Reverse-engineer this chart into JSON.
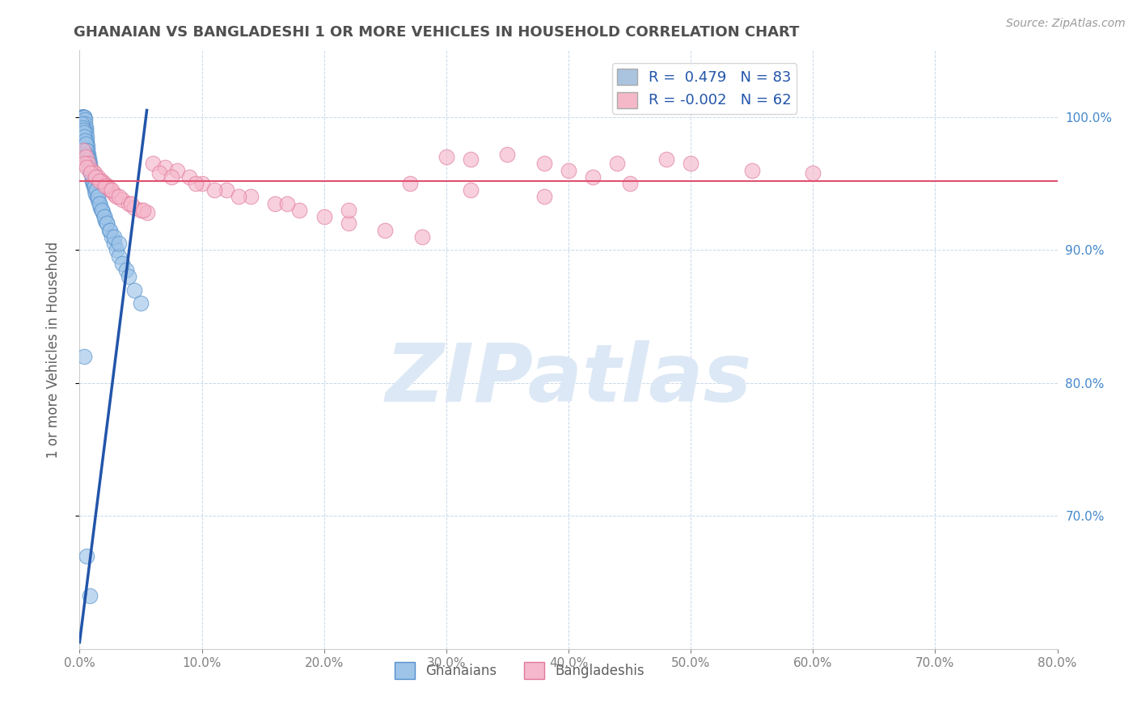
{
  "title": "GHANAIAN VS BANGLADESHI 1 OR MORE VEHICLES IN HOUSEHOLD CORRELATION CHART",
  "source": "Source: ZipAtlas.com",
  "ylabel": "1 or more Vehicles in Household",
  "xlabel_ghanaian": "Ghanaians",
  "xlabel_bangladeshi": "Bangladeshis",
  "legend_line1": "R =  0.479   N = 83",
  "legend_line2": "R = -0.002   N = 62",
  "legend_color1": "#aac4e0",
  "legend_color2": "#f4b8c8",
  "blue_fill": "#9ec4e8",
  "pink_fill": "#f5b8cc",
  "blue_edge": "#5590cc",
  "pink_edge": "#e07898",
  "blue_line_color": "#2255aa",
  "pink_line_color": "#e05070",
  "watermark_text": "ZIPatlas",
  "watermark_color": "#dce8f5",
  "xlim": [
    0.0,
    80.0
  ],
  "ylim": [
    60.0,
    105.0
  ],
  "xticks": [
    0.0,
    10.0,
    20.0,
    30.0,
    40.0,
    50.0,
    60.0,
    70.0,
    80.0
  ],
  "yticks": [
    70.0,
    80.0,
    90.0,
    100.0
  ],
  "right_ytick_labels": [
    "70.0%",
    "80.0%",
    "90.0%",
    "100.0%"
  ],
  "xtick_labels": [
    "0.0%",
    "10.0%",
    "20.0%",
    "30.0%",
    "40.0%",
    "50.0%",
    "60.0%",
    "70.0%",
    "80.0%"
  ],
  "ghanaian_x": [
    0.15,
    0.18,
    0.2,
    0.22,
    0.25,
    0.28,
    0.3,
    0.32,
    0.35,
    0.38,
    0.4,
    0.42,
    0.45,
    0.48,
    0.5,
    0.52,
    0.55,
    0.58,
    0.6,
    0.62,
    0.65,
    0.68,
    0.7,
    0.75,
    0.8,
    0.85,
    0.9,
    0.95,
    1.0,
    1.05,
    1.1,
    1.15,
    1.2,
    1.3,
    1.4,
    1.5,
    1.6,
    1.7,
    1.8,
    1.9,
    2.0,
    2.1,
    2.2,
    2.4,
    2.6,
    2.8,
    3.0,
    3.2,
    3.5,
    3.8,
    4.0,
    4.5,
    5.0,
    0.2,
    0.25,
    0.3,
    0.35,
    0.4,
    0.45,
    0.5,
    0.55,
    0.6,
    0.65,
    0.7,
    0.75,
    0.8,
    0.85,
    0.9,
    1.0,
    1.1,
    1.2,
    1.35,
    1.5,
    1.65,
    1.8,
    2.0,
    2.2,
    2.5,
    2.8,
    3.2,
    0.4,
    0.6,
    0.8
  ],
  "ghanaian_y": [
    100.0,
    100.0,
    100.0,
    100.0,
    100.0,
    100.0,
    100.0,
    100.0,
    100.0,
    100.0,
    100.0,
    99.8,
    99.5,
    99.2,
    99.0,
    98.8,
    98.5,
    98.2,
    98.0,
    97.8,
    97.5,
    97.2,
    97.0,
    96.8,
    96.5,
    96.2,
    96.0,
    95.8,
    95.5,
    95.2,
    95.0,
    94.8,
    94.5,
    94.2,
    94.0,
    93.8,
    93.5,
    93.2,
    93.0,
    92.8,
    92.5,
    92.2,
    92.0,
    91.5,
    91.0,
    90.5,
    90.0,
    89.5,
    89.0,
    88.5,
    88.0,
    87.0,
    86.0,
    99.5,
    99.2,
    99.0,
    98.8,
    98.5,
    98.2,
    98.0,
    97.5,
    97.2,
    97.0,
    96.8,
    96.5,
    96.2,
    96.0,
    95.8,
    95.5,
    95.2,
    94.8,
    94.5,
    94.0,
    93.5,
    93.0,
    92.5,
    92.0,
    91.5,
    91.0,
    90.5,
    82.0,
    67.0,
    64.0
  ],
  "bangladeshi_x": [
    0.3,
    0.5,
    0.7,
    1.0,
    1.2,
    1.5,
    1.8,
    2.0,
    2.3,
    2.5,
    2.8,
    3.0,
    3.5,
    4.0,
    4.5,
    5.0,
    5.5,
    6.0,
    7.0,
    8.0,
    9.0,
    10.0,
    12.0,
    14.0,
    16.0,
    18.0,
    20.0,
    22.0,
    25.0,
    28.0,
    30.0,
    32.0,
    35.0,
    38.0,
    40.0,
    42.0,
    45.0,
    48.0,
    50.0,
    55.0,
    60.0,
    0.4,
    0.6,
    0.9,
    1.3,
    1.6,
    2.1,
    2.6,
    3.2,
    4.2,
    5.2,
    6.5,
    7.5,
    9.5,
    11.0,
    13.0,
    17.0,
    22.0,
    27.0,
    32.0,
    38.0,
    44.0
  ],
  "bangladeshi_y": [
    97.5,
    97.0,
    96.5,
    96.0,
    95.8,
    95.5,
    95.2,
    95.0,
    94.8,
    94.5,
    94.2,
    94.0,
    93.8,
    93.5,
    93.2,
    93.0,
    92.8,
    96.5,
    96.2,
    96.0,
    95.5,
    95.0,
    94.5,
    94.0,
    93.5,
    93.0,
    92.5,
    92.0,
    91.5,
    91.0,
    97.0,
    96.8,
    97.2,
    96.5,
    96.0,
    95.5,
    95.0,
    96.8,
    96.5,
    96.0,
    95.8,
    96.5,
    96.2,
    95.8,
    95.5,
    95.2,
    94.8,
    94.5,
    94.0,
    93.5,
    93.0,
    95.8,
    95.5,
    95.0,
    94.5,
    94.0,
    93.5,
    93.0,
    95.0,
    94.5,
    94.0,
    96.5
  ],
  "blue_trendline_x": [
    0.0,
    5.5
  ],
  "blue_trendline_y": [
    60.5,
    100.5
  ],
  "pink_trendline_y": 95.2,
  "background_color": "#ffffff",
  "grid_color": "#c8d8ea",
  "title_color": "#505050",
  "axis_label_color": "#606060",
  "tick_color": "#808080",
  "right_ytick_color": "#4488cc",
  "legend_text_color": "#2255aa",
  "bottom_legend_color": "#606060"
}
